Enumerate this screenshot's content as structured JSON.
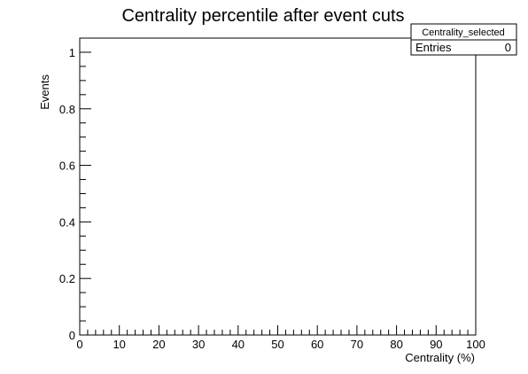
{
  "chart_data": {
    "type": "bar",
    "title": "Centrality percentile after event cuts",
    "xlabel": "Centrality (%)",
    "ylabel": "Events",
    "xlim": [
      0,
      100
    ],
    "ylim": [
      0,
      1.05
    ],
    "x_ticks": [
      "0",
      "10",
      "20",
      "30",
      "40",
      "50",
      "60",
      "70",
      "80",
      "90",
      "100"
    ],
    "y_ticks": [
      "0",
      "0.2",
      "0.4",
      "0.6",
      "0.8",
      "1"
    ],
    "series": [
      {
        "name": "Centrality_selected",
        "x": [],
        "values": []
      }
    ],
    "grid": false,
    "legend": "none"
  },
  "stats_box": {
    "name": "Centrality_selected",
    "entries_label": "Entries",
    "entries_value": "0"
  }
}
